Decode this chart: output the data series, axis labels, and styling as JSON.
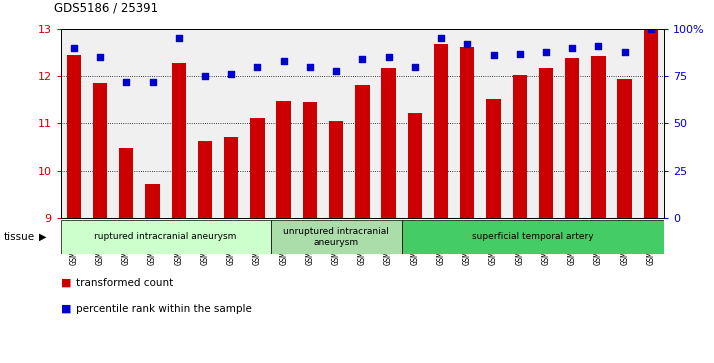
{
  "title": "GDS5186 / 25391",
  "samples": [
    "GSM1306885",
    "GSM1306886",
    "GSM1306887",
    "GSM1306888",
    "GSM1306889",
    "GSM1306890",
    "GSM1306891",
    "GSM1306892",
    "GSM1306893",
    "GSM1306894",
    "GSM1306895",
    "GSM1306896",
    "GSM1306897",
    "GSM1306898",
    "GSM1306899",
    "GSM1306900",
    "GSM1306901",
    "GSM1306902",
    "GSM1306903",
    "GSM1306904",
    "GSM1306905",
    "GSM1306906",
    "GSM1306907"
  ],
  "bar_values": [
    12.45,
    11.85,
    10.48,
    9.72,
    12.28,
    10.62,
    10.72,
    11.12,
    11.48,
    11.46,
    11.05,
    11.82,
    12.18,
    11.22,
    12.68,
    12.62,
    11.52,
    12.02,
    12.18,
    12.38,
    12.42,
    11.95,
    13.0
  ],
  "percentile_pct": [
    90,
    85,
    72,
    72,
    95,
    75,
    76,
    80,
    83,
    80,
    78,
    84,
    85,
    80,
    95,
    92,
    86,
    87,
    88,
    90,
    91,
    88,
    100
  ],
  "ylim": [
    9,
    13
  ],
  "yticks": [
    9,
    10,
    11,
    12,
    13
  ],
  "bar_color": "#cc0000",
  "dot_color": "#0000cc",
  "bar_bottom": 9,
  "groups": [
    {
      "label": "ruptured intracranial aneurysm",
      "start": 0,
      "end": 8,
      "color": "#ccffcc"
    },
    {
      "label": "unruptured intracranial\naneurysm",
      "start": 8,
      "end": 13,
      "color": "#aaffaa"
    },
    {
      "label": "superficial temporal artery",
      "start": 13,
      "end": 23,
      "color": "#44dd66"
    }
  ],
  "tissue_label": "tissue",
  "legend_bar_label": "transformed count",
  "legend_dot_label": "percentile rank within the sample",
  "right_ytick_pcts": [
    0,
    25,
    50,
    75,
    100
  ],
  "right_yticklabels": [
    "0",
    "25",
    "50",
    "75",
    "100%"
  ],
  "bg_color": "#ffffff",
  "plot_bg": "#f0f0f0"
}
